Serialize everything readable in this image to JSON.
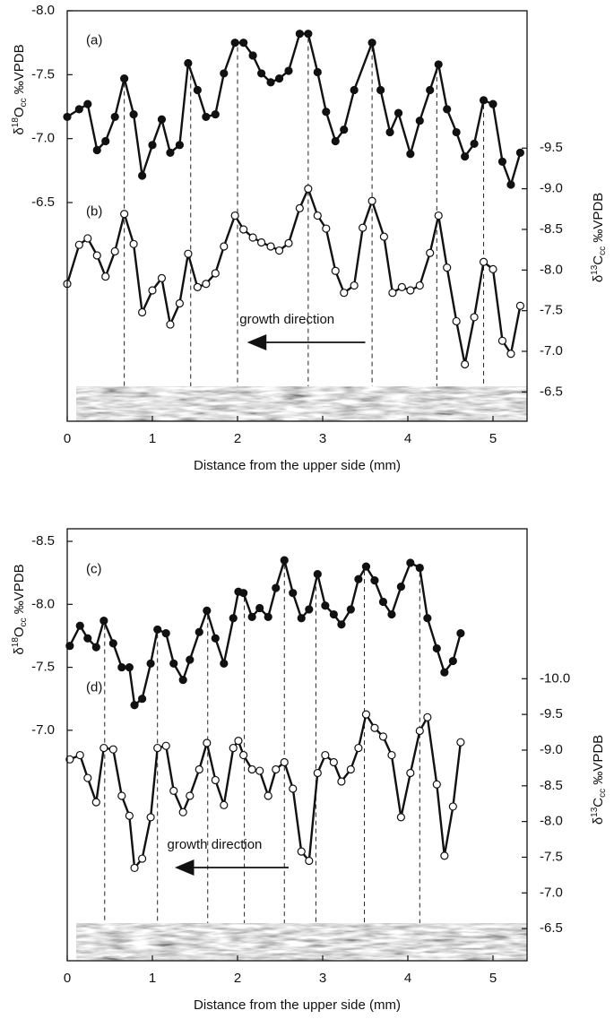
{
  "chart_data": [
    {
      "type": "line",
      "xlabel": "Distance from the upper side (mm)",
      "ylabel": {
        "symbol": "δ",
        "sup": "18",
        "element": "O",
        "sub": "cc",
        "unit": " ‰VPDB"
      },
      "y2label": {
        "symbol": "δ",
        "sup": "13",
        "element": "C",
        "sub": "cc",
        "unit": " ‰VPDB"
      },
      "annotations": [
        "growth direction"
      ],
      "xlim": [
        0,
        5.4
      ],
      "xticks": [
        0,
        1,
        2,
        3,
        4,
        5
      ],
      "ylim": [
        -4.79,
        -8.0
      ],
      "yticks": [
        {
          "value": -8,
          "label": "-8.0"
        },
        -7.5,
        {
          "value": -7,
          "label": "-7.0"
        },
        -6.5
      ],
      "y2lim": [
        -6.14,
        -11.19
      ],
      "y2ticks": [
        -9.5,
        {
          "value": -9,
          "label": "-9.0"
        },
        -8.5,
        {
          "value": -8,
          "label": "-8.0"
        },
        -7.5,
        {
          "value": -7,
          "label": "-7.0"
        },
        -6.5
      ],
      "reference_lines": [
        0.67,
        1.45,
        2.0,
        2.83,
        3.58,
        4.34,
        4.89
      ],
      "series": [
        {
          "name": "(a)",
          "color": "#111111",
          "marker": "filled",
          "x": [
            0,
            0.14,
            0.24,
            0.35,
            0.45,
            0.56,
            0.67,
            0.78,
            0.88,
            1.0,
            1.11,
            1.21,
            1.32,
            1.42,
            1.53,
            1.63,
            1.74,
            1.84,
            1.97,
            2.07,
            2.18,
            2.28,
            2.39,
            2.49,
            2.6,
            2.73,
            2.83,
            2.94,
            3.04,
            3.15,
            3.25,
            3.37,
            3.58,
            3.68,
            3.79,
            3.89,
            4.03,
            4.14,
            4.26,
            4.36,
            4.46,
            4.57,
            4.67,
            4.78,
            4.89,
            5.0,
            5.11,
            5.21,
            5.32
          ],
          "values": [
            -7.17,
            -7.23,
            -7.27,
            -6.91,
            -6.98,
            -7.17,
            -7.47,
            -7.19,
            -6.71,
            -6.95,
            -7.15,
            -6.89,
            -6.95,
            -7.59,
            -7.38,
            -7.17,
            -7.19,
            -7.51,
            -7.75,
            -7.75,
            -7.65,
            -7.51,
            -7.44,
            -7.47,
            -7.53,
            -7.82,
            -7.82,
            -7.52,
            -7.21,
            -6.98,
            -7.07,
            -7.38,
            -7.75,
            -7.38,
            -7.05,
            -7.2,
            -6.88,
            -7.14,
            -7.38,
            -7.58,
            -7.23,
            -7.05,
            -6.86,
            -6.96,
            -7.3,
            -7.27,
            -6.82,
            -6.64,
            -6.89
          ]
        },
        {
          "name": "(b)",
          "color": "#111111",
          "marker": "open",
          "axis": "y2",
          "x": [
            0,
            0.14,
            0.24,
            0.35,
            0.45,
            0.56,
            0.67,
            0.78,
            0.88,
            1.0,
            1.11,
            1.21,
            1.32,
            1.42,
            1.53,
            1.63,
            1.74,
            1.84,
            1.97,
            2.07,
            2.18,
            2.28,
            2.39,
            2.49,
            2.6,
            2.73,
            2.83,
            2.94,
            3.04,
            3.15,
            3.25,
            3.37,
            3.47,
            3.58,
            3.72,
            3.82,
            3.93,
            4.03,
            4.14,
            4.26,
            4.36,
            4.46,
            4.57,
            4.67,
            4.78,
            4.89,
            5.0,
            5.11,
            5.21,
            5.32
          ],
          "values": [
            -7.83,
            -8.31,
            -8.39,
            -8.18,
            -7.92,
            -8.23,
            -8.69,
            -8.32,
            -7.48,
            -7.75,
            -7.9,
            -7.33,
            -7.59,
            -8.2,
            -7.79,
            -7.83,
            -7.96,
            -8.29,
            -8.67,
            -8.5,
            -8.4,
            -8.34,
            -8.29,
            -8.24,
            -8.33,
            -8.76,
            -9.0,
            -8.67,
            -8.51,
            -7.99,
            -7.72,
            -7.81,
            -8.52,
            -8.85,
            -8.41,
            -7.72,
            -7.79,
            -7.75,
            -7.81,
            -8.21,
            -8.67,
            -8.03,
            -7.37,
            -6.84,
            -7.42,
            -8.1,
            -8.01,
            -7.13,
            -6.97,
            -7.56
          ]
        }
      ]
    },
    {
      "type": "line",
      "xlabel": "Distance from the upper side (mm)",
      "ylabel": {
        "symbol": "δ",
        "sup": "18",
        "element": "O",
        "sub": "cc",
        "unit": " ‰VPDB"
      },
      "y2label": {
        "symbol": "δ",
        "sup": "13",
        "element": "C",
        "sub": "cc",
        "unit": " ‰VPDB"
      },
      "annotations": [
        "growth direction"
      ],
      "xlim": [
        0,
        5.4
      ],
      "xticks": [
        0,
        1,
        2,
        3,
        4,
        5
      ],
      "ylim": [
        -5.17,
        -8.6
      ],
      "yticks": [
        -8.5,
        {
          "value": -8,
          "label": "-8.0"
        },
        -7.5,
        {
          "value": -7,
          "label": "-7.0"
        }
      ],
      "y2lim": [
        -6.05,
        -12.1
      ],
      "y2ticks": [
        {
          "value": -10,
          "label": "-10.0"
        },
        -9.5,
        {
          "value": -9,
          "label": "-9.0"
        },
        -8.5,
        {
          "value": -8,
          "label": "-8.0"
        },
        -7.5,
        {
          "value": -7,
          "label": "-7.0"
        },
        -6.5
      ],
      "reference_lines": [
        0.44,
        1.06,
        1.65,
        2.08,
        2.55,
        2.92,
        3.49,
        4.14
      ],
      "series": [
        {
          "name": "(c)",
          "color": "#111111",
          "marker": "filled",
          "x": [
            0.03,
            0.15,
            0.24,
            0.34,
            0.43,
            0.54,
            0.64,
            0.73,
            0.79,
            0.88,
            0.98,
            1.06,
            1.16,
            1.25,
            1.36,
            1.44,
            1.55,
            1.64,
            1.74,
            1.84,
            1.95,
            2.01,
            2.07,
            2.17,
            2.26,
            2.36,
            2.45,
            2.55,
            2.65,
            2.75,
            2.84,
            2.94,
            3.03,
            3.13,
            3.22,
            3.33,
            3.42,
            3.51,
            3.61,
            3.71,
            3.81,
            3.92,
            4.03,
            4.14,
            4.23,
            4.34,
            4.43,
            4.53,
            4.62
          ],
          "values": [
            -7.67,
            -7.83,
            -7.73,
            -7.66,
            -7.87,
            -7.69,
            -7.5,
            -7.5,
            -7.2,
            -7.25,
            -7.53,
            -7.8,
            -7.77,
            -7.53,
            -7.4,
            -7.56,
            -7.78,
            -7.95,
            -7.73,
            -7.53,
            -7.89,
            -8.1,
            -8.09,
            -7.9,
            -7.97,
            -7.9,
            -8.13,
            -8.35,
            -8.09,
            -7.89,
            -7.96,
            -8.24,
            -7.99,
            -7.92,
            -7.84,
            -7.96,
            -8.2,
            -8.3,
            -8.19,
            -8.02,
            -7.92,
            -8.14,
            -8.33,
            -8.29,
            -7.89,
            -7.65,
            -7.46,
            -7.55,
            -7.77
          ]
        },
        {
          "name": "(d)",
          "color": "#111111",
          "marker": "open",
          "axis": "y2",
          "x": [
            0.03,
            0.15,
            0.24,
            0.34,
            0.43,
            0.54,
            0.64,
            0.73,
            0.79,
            0.88,
            0.98,
            1.06,
            1.16,
            1.25,
            1.36,
            1.44,
            1.55,
            1.64,
            1.74,
            1.84,
            1.95,
            2.01,
            2.07,
            2.17,
            2.26,
            2.36,
            2.45,
            2.55,
            2.65,
            2.75,
            2.84,
            2.94,
            3.03,
            3.13,
            3.22,
            3.33,
            3.42,
            3.51,
            3.61,
            3.71,
            3.81,
            3.92,
            4.03,
            4.14,
            4.23,
            4.34,
            4.43,
            4.53,
            4.62
          ],
          "values": [
            -8.87,
            -8.93,
            -8.61,
            -8.27,
            -9.03,
            -9.01,
            -8.36,
            -8.08,
            -7.35,
            -7.48,
            -8.06,
            -9.03,
            -9.06,
            -8.43,
            -8.13,
            -8.36,
            -8.73,
            -9.1,
            -8.58,
            -8.23,
            -9.03,
            -9.13,
            -8.93,
            -8.73,
            -8.71,
            -8.36,
            -8.73,
            -8.83,
            -8.46,
            -7.58,
            -7.45,
            -8.68,
            -8.93,
            -8.83,
            -8.56,
            -8.73,
            -9.03,
            -9.5,
            -9.31,
            -9.19,
            -8.93,
            -8.06,
            -8.68,
            -9.27,
            -9.46,
            -8.52,
            -7.52,
            -8.21,
            -9.11
          ]
        }
      ]
    }
  ]
}
